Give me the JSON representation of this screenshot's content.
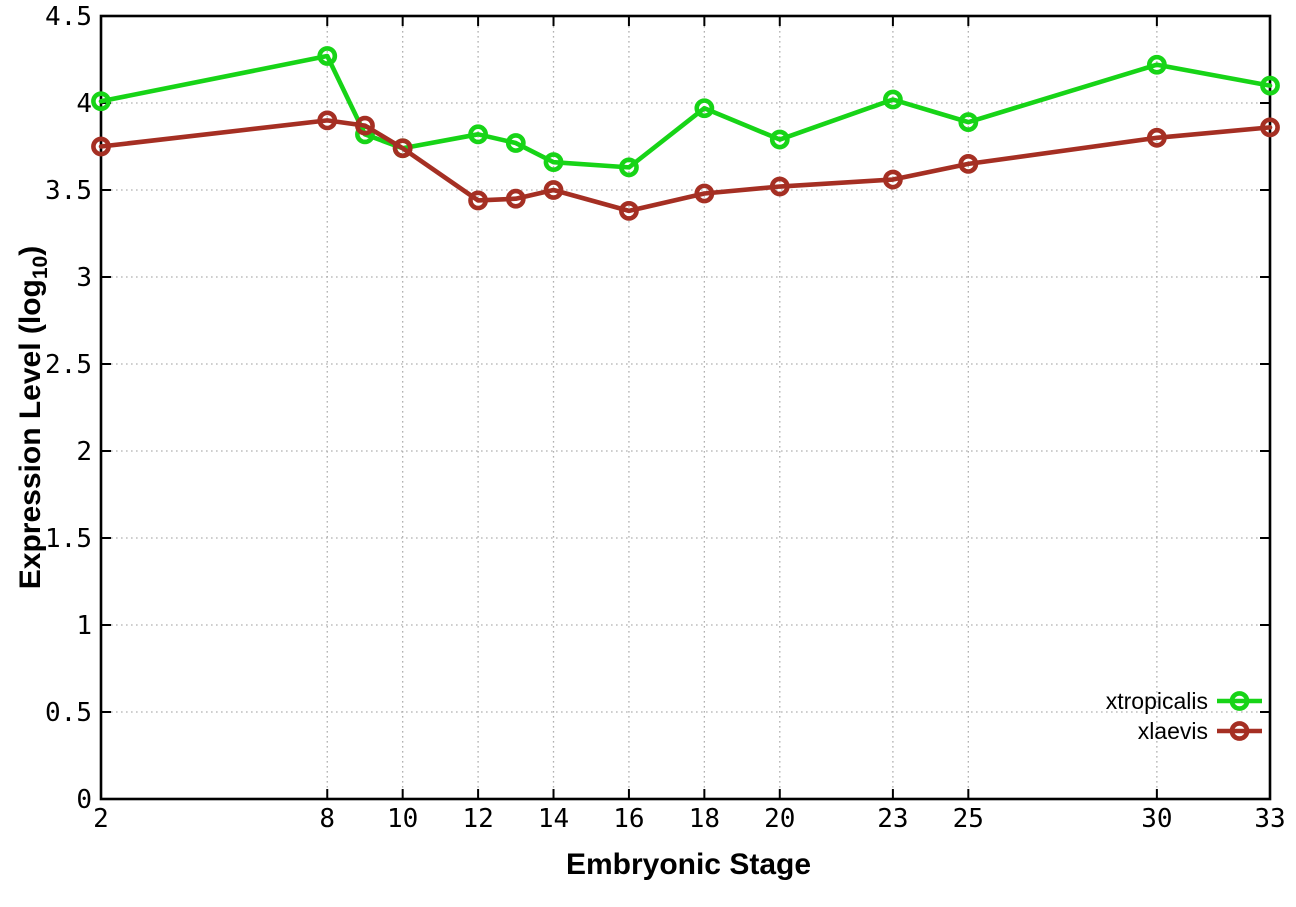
{
  "chart_data": {
    "type": "line",
    "title": "",
    "xlabel": "Embryonic Stage",
    "ylabel": "Expression Level (log10)",
    "ylabel_rich": {
      "pre": "Expression Level (log",
      "sub": "10",
      "post": ")"
    },
    "xlim": [
      2,
      33
    ],
    "ylim": [
      0,
      4.5
    ],
    "grid": true,
    "legend_position": "inside-bottom-right",
    "xticks": [
      2,
      8,
      10,
      12,
      14,
      16,
      18,
      20,
      23,
      25,
      30,
      33
    ],
    "xtick_labels": [
      "2",
      "8",
      "10",
      "12",
      "14",
      "16",
      "18",
      "20",
      "23",
      "25",
      "30",
      "33"
    ],
    "yticks": [
      0,
      0.5,
      1,
      1.5,
      2,
      2.5,
      3,
      3.5,
      4,
      4.5
    ],
    "ytick_labels": [
      "0",
      "0.5",
      "1",
      "1.5",
      "2",
      "2.5",
      "3",
      "3.5",
      "4",
      "4.5"
    ],
    "x": [
      2,
      8,
      9,
      10,
      12,
      13,
      14,
      16,
      18,
      20,
      23,
      25,
      30,
      33
    ],
    "series": [
      {
        "name": "xtropicalis",
        "color": "#17d417",
        "marker": "open-circle",
        "values": [
          4.01,
          4.27,
          3.82,
          3.74,
          3.82,
          3.77,
          3.66,
          3.63,
          3.97,
          3.79,
          4.02,
          3.89,
          4.22,
          4.1
        ]
      },
      {
        "name": "xlaevis",
        "color": "#a52f23",
        "marker": "open-circle",
        "values": [
          3.75,
          3.9,
          3.87,
          3.74,
          3.44,
          3.45,
          3.5,
          3.38,
          3.48,
          3.52,
          3.56,
          3.65,
          3.8,
          3.86
        ]
      }
    ],
    "styles": {
      "grid_color": "#b0b0b0",
      "border_color": "#000000",
      "text_color": "#000000"
    }
  }
}
